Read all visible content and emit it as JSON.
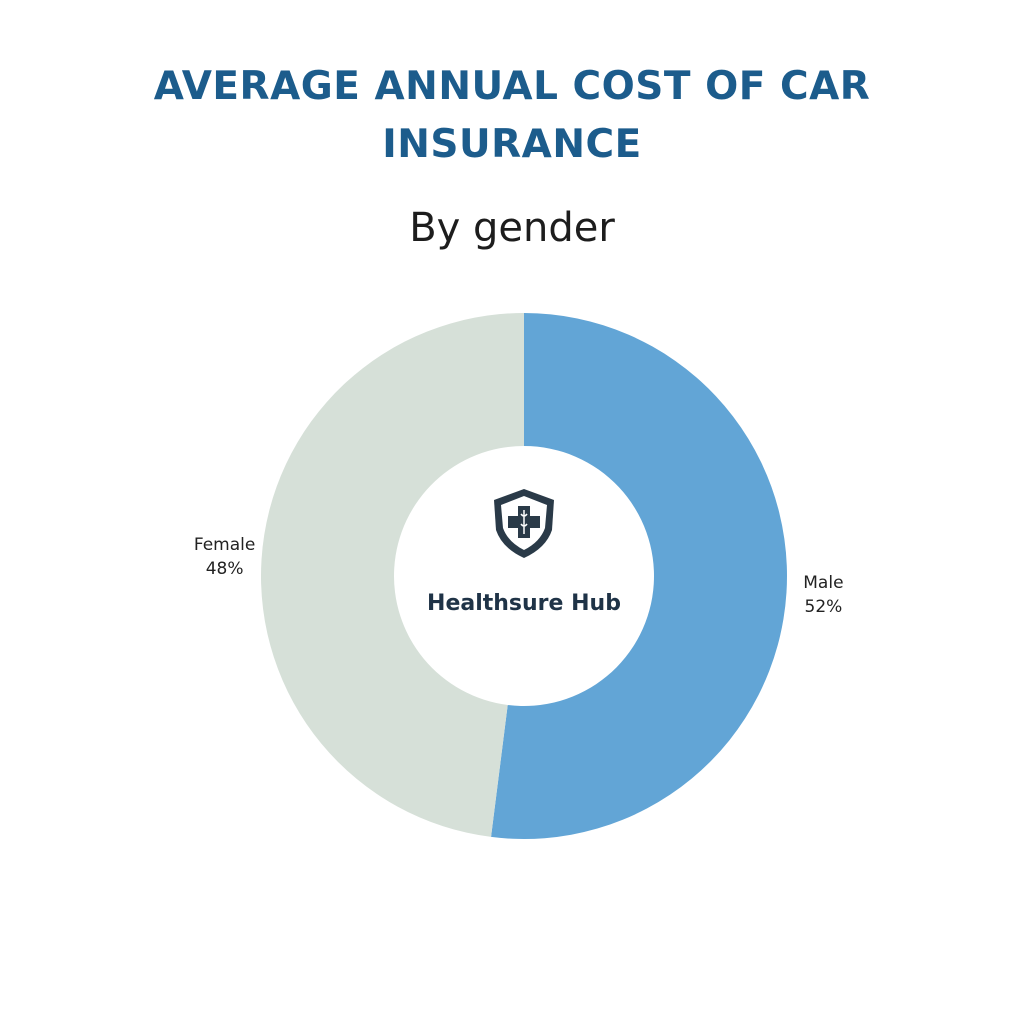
{
  "chart_data": {
    "type": "donut",
    "title": "AVERAGE ANNUAL COST OF CAR INSURANCE",
    "subtitle": "By gender",
    "center_label": "Healthsure Hub",
    "categories": [
      "Male",
      "Female"
    ],
    "values": [
      52,
      48
    ],
    "value_labels": [
      "52%",
      "48%"
    ],
    "colors": [
      "#62a5d6",
      "#d6e0d8"
    ]
  }
}
